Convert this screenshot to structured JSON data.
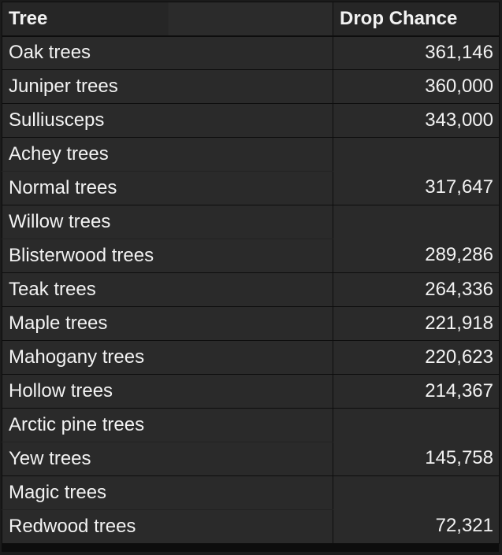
{
  "table": {
    "headers": {
      "tree": "Tree",
      "drop_chance": "Drop Chance"
    },
    "rows": [
      {
        "tree": "Oak trees",
        "drop_chance": "361,146"
      },
      {
        "tree": "Juniper trees",
        "drop_chance": "360,000"
      },
      {
        "tree": "Sulliusceps",
        "drop_chance": "343,000"
      },
      {
        "tree": "Achey trees",
        "drop_chance": "317,647",
        "merged_with_next": true
      },
      {
        "tree": "Normal trees"
      },
      {
        "tree": "Willow trees",
        "drop_chance": "289,286",
        "merged_with_next": true
      },
      {
        "tree": "Blisterwood trees"
      },
      {
        "tree": "Teak trees",
        "drop_chance": "264,336"
      },
      {
        "tree": "Maple trees",
        "drop_chance": "221,918"
      },
      {
        "tree": "Mahogany trees",
        "drop_chance": "220,623"
      },
      {
        "tree": "Hollow trees",
        "drop_chance": "214,367"
      },
      {
        "tree": "Arctic pine trees",
        "drop_chance": "145,758",
        "merged_with_next": true
      },
      {
        "tree": "Yew trees"
      },
      {
        "tree": "Magic trees",
        "drop_chance": "72,321",
        "merged_with_next": true
      },
      {
        "tree": "Redwood trees"
      }
    ]
  }
}
